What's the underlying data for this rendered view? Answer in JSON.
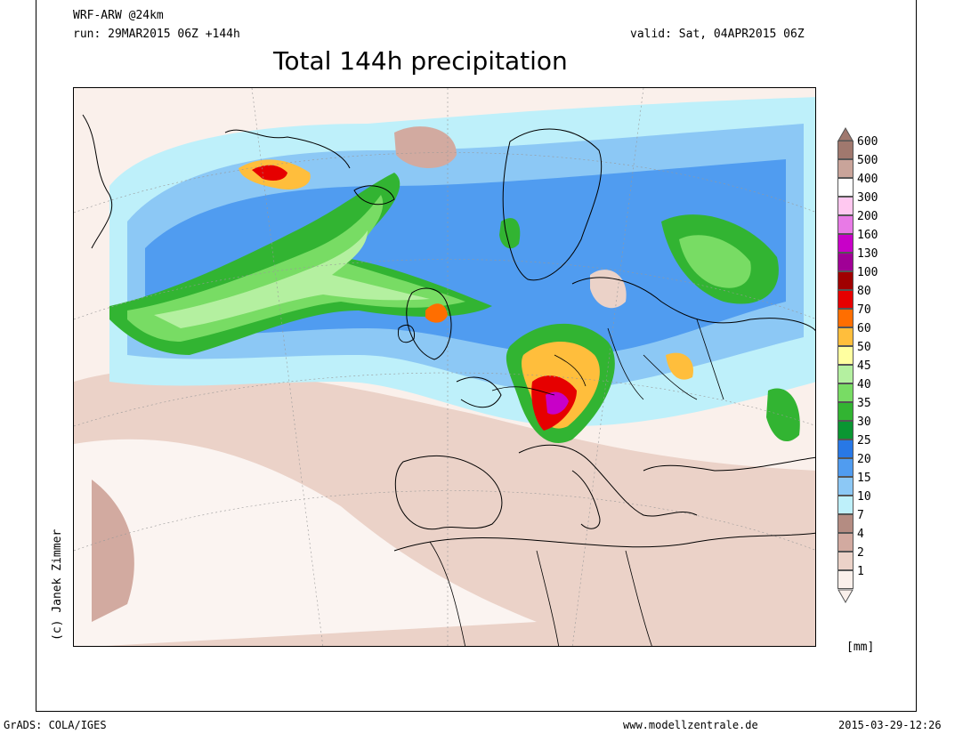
{
  "header": {
    "model": "WRF-ARW @24km",
    "run": "run: 29MAR2015 06Z +144h",
    "valid": "valid: Sat, 04APR2015 06Z",
    "title": "Total 144h precipitation"
  },
  "map": {
    "credit": "(c) Janek Zimmer",
    "unit": "[mm]"
  },
  "legend": {
    "levels": [
      {
        "label": "600",
        "color": "#a0786e"
      },
      {
        "label": "500",
        "color": "#c9a49a"
      },
      {
        "label": "400",
        "color": "#ffffff"
      },
      {
        "label": "300",
        "color": "#ffc8f0"
      },
      {
        "label": "200",
        "color": "#e87ae6"
      },
      {
        "label": "160",
        "color": "#c800c8"
      },
      {
        "label": "130",
        "color": "#a00096"
      },
      {
        "label": "100",
        "color": "#a00000"
      },
      {
        "label": "80",
        "color": "#e60000"
      },
      {
        "label": "70",
        "color": "#ff6e00"
      },
      {
        "label": "60",
        "color": "#ffbe3c"
      },
      {
        "label": "50",
        "color": "#ffffa0"
      },
      {
        "label": "45",
        "color": "#b4f0a0"
      },
      {
        "label": "40",
        "color": "#78dc64"
      },
      {
        "label": "35",
        "color": "#32b432"
      },
      {
        "label": "30",
        "color": "#0a9632"
      },
      {
        "label": "25",
        "color": "#2878e6"
      },
      {
        "label": "20",
        "color": "#509cf0"
      },
      {
        "label": "15",
        "color": "#8cc8f5"
      },
      {
        "label": "10",
        "color": "#bef0fa"
      },
      {
        "label": "7",
        "color": "#b48c82"
      },
      {
        "label": "4",
        "color": "#d2aaa0"
      },
      {
        "label": "2",
        "color": "#ebd2c8"
      },
      {
        "label": "1",
        "color": "#faf0eb"
      }
    ]
  },
  "footer": {
    "left": "GrADS: COLA/IGES",
    "center": "www.modellzentrale.de",
    "right": "2015-03-29-12:26"
  }
}
